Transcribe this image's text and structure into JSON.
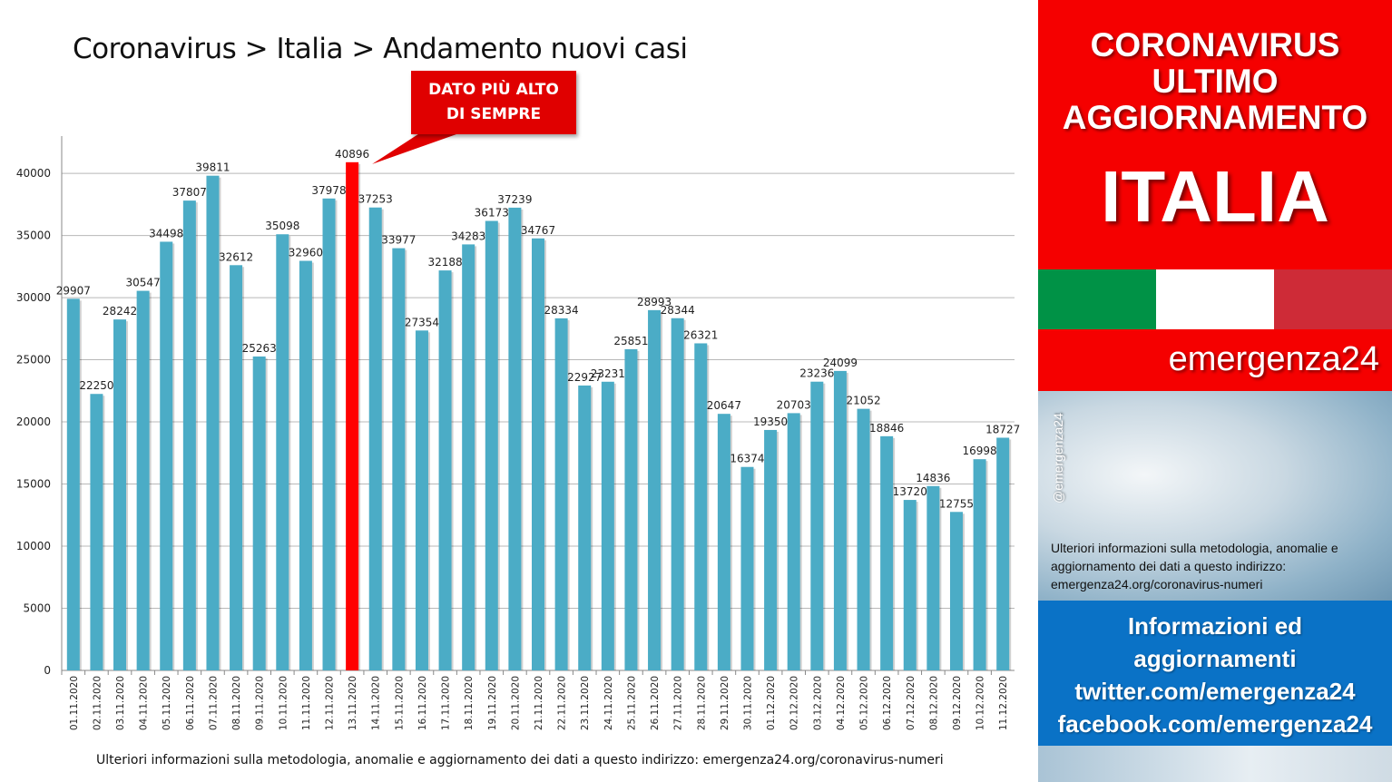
{
  "header": {
    "title": "Coronavirus > Italia > Andamento nuovi casi"
  },
  "callout": {
    "line1": "DATO PIÙ ALTO",
    "line2": "DI SEMPRE"
  },
  "footnote": "Ulteriori informazioni sulla metodologia, anomalie e aggiornamento dei dati a questo indirizzo: emergenza24.org/coronavirus-numeri",
  "sidebar": {
    "heading_lines": [
      "CORONAVIRUS",
      "ULTIMO",
      "AGGIORNAMENTO"
    ],
    "country": "ITALIA",
    "flag_colors": [
      "#009246",
      "#ffffff",
      "#ce2b37"
    ],
    "brand": "emergenza24",
    "handle": "@emergenza24",
    "info": "Ulteriori informazioni sulla metodologia, anomalie e aggiornamento dei dati a questo indirizzo: emergenza24.org/coronavirus-numeri",
    "social_lines": [
      "Informazioni ed",
      "aggiornamenti",
      "twitter.com/emergenza24",
      "facebook.com/emergenza24"
    ]
  },
  "colors": {
    "bar": "#4bacc6",
    "highlight": "#ff0000",
    "sidebar_red": "#f50000",
    "sidebar_blue": "#0a72c6"
  },
  "chart_data": {
    "type": "bar",
    "title": "Coronavirus > Italia > Andamento nuovi casi",
    "xlabel": "",
    "ylabel": "",
    "ylim": [
      0,
      43000
    ],
    "yticks": [
      0,
      5000,
      10000,
      15000,
      20000,
      25000,
      30000,
      35000,
      40000
    ],
    "grid": true,
    "legend": "none",
    "highlight_index": 12,
    "categories": [
      "01.11.2020",
      "02.11.2020",
      "03.11.2020",
      "04.11.2020",
      "05.11.2020",
      "06.11.2020",
      "07.11.2020",
      "08.11.2020",
      "09.11.2020",
      "10.11.2020",
      "11.11.2020",
      "12.11.2020",
      "13.11.2020",
      "14.11.2020",
      "15.11.2020",
      "16.11.2020",
      "17.11.2020",
      "18.11.2020",
      "19.11.2020",
      "20.11.2020",
      "21.11.2020",
      "22.11.2020",
      "23.11.2020",
      "24.11.2020",
      "25.11.2020",
      "26.11.2020",
      "27.11.2020",
      "28.11.2020",
      "29.11.2020",
      "30.11.2020",
      "01.12.2020",
      "02.12.2020",
      "03.12.2020",
      "04.12.2020",
      "05.12.2020",
      "06.12.2020",
      "07.12.2020",
      "08.12.2020",
      "09.12.2020",
      "10.12.2020",
      "11.12.2020"
    ],
    "values": [
      29907,
      22250,
      28242,
      30547,
      34498,
      37807,
      39811,
      32612,
      25263,
      35098,
      32960,
      37978,
      40896,
      37253,
      33977,
      27354,
      32188,
      34283,
      36173,
      37239,
      34767,
      28334,
      22927,
      23231,
      25851,
      28993,
      28344,
      26321,
      20647,
      16374,
      19350,
      20703,
      23236,
      24099,
      21052,
      18846,
      13720,
      14836,
      12755,
      16998,
      18727
    ]
  }
}
